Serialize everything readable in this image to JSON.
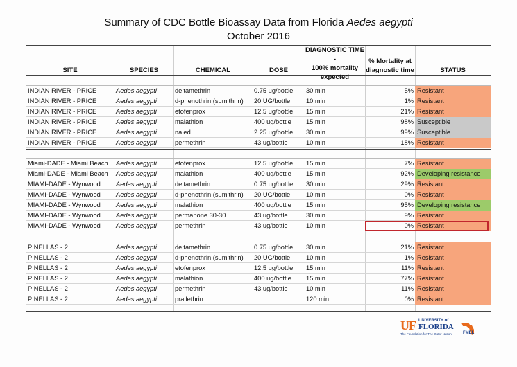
{
  "title": {
    "main": "Summary of CDC Bottle Bioassay Data from Florida",
    "species_italic": "Aedes aegypti",
    "date": "October 2016"
  },
  "headers": {
    "site": "SITE",
    "species": "SPECIES",
    "chemical": "CHEMICAL",
    "dose": "DOSE",
    "diag_1": "DIAGNOSTIC TIME -",
    "diag_2": "100% mortality",
    "diag_3": "expected",
    "mort_1": "% Mortality at",
    "mort_2": "diagnostic time",
    "status": "STATUS"
  },
  "groups": [
    {
      "rows": [
        {
          "site": "INDIAN RIVER - PRICE",
          "species": "Aedes aegypti",
          "chemical": "deltamethrin",
          "dose": "0.75 ug/bottle",
          "time": "30 min",
          "mortality": "5%",
          "status": "Resistant",
          "status_type": "resistant"
        },
        {
          "site": "INDIAN RIVER - PRICE",
          "species": "Aedes aegypti",
          "chemical": "d-phenothrin (sumithrin)",
          "dose": "20 UG/bottle",
          "time": "10 min",
          "mortality": "1%",
          "status": "Resistant",
          "status_type": "resistant"
        },
        {
          "site": "INDIAN RIVER - PRICE",
          "species": "Aedes aegypti",
          "chemical": "etofenprox",
          "dose": "12.5 ug/bottle",
          "time": "15 min",
          "mortality": "21%",
          "status": "Resistant",
          "status_type": "resistant"
        },
        {
          "site": "INDIAN RIVER - PRICE",
          "species": "Aedes aegypti",
          "chemical": "malathion",
          "dose": "400 ug/bottle",
          "time": "15 min",
          "mortality": "98%",
          "status": "Susceptible",
          "status_type": "susceptible"
        },
        {
          "site": "INDIAN RIVER - PRICE",
          "species": "Aedes aegypti",
          "chemical": "naled",
          "dose": "2.25 ug/bottle",
          "time": "30 min",
          "mortality": "99%",
          "status": "Susceptible",
          "status_type": "susceptible"
        },
        {
          "site": "INDIAN RIVER - PRICE",
          "species": "Aedes aegypti",
          "chemical": "permethrin",
          "dose": "43 ug/bottle",
          "time": "10 min",
          "mortality": "18%",
          "status": "Resistant",
          "status_type": "resistant"
        }
      ]
    },
    {
      "rows": [
        {
          "site": "Miami-DADE - Miami Beach",
          "species": "Aedes aegypti",
          "chemical": "etofenprox",
          "dose": "12.5 ug/bottle",
          "time": "15 min",
          "mortality": "7%",
          "status": "Resistant",
          "status_type": "resistant"
        },
        {
          "site": "Miami-DADE - Miami Beach",
          "species": "Aedes aegypti",
          "chemical": "malathion",
          "dose": "400 ug/bottle",
          "time": "15 min",
          "mortality": "92%",
          "status": "Developing resistance",
          "status_type": "developing"
        },
        {
          "site": "MIAMI-DADE - Wynwood",
          "species": "Aedes aegypti",
          "chemical": "deltamethrin",
          "dose": "0.75 ug/bottle",
          "time": "30 min",
          "mortality": "29%",
          "status": "Resistant",
          "status_type": "resistant"
        },
        {
          "site": "MIAMI-DADE - Wynwood",
          "species": "Aedes aegypti",
          "chemical": "d-phenothrin (sumithrin)",
          "dose": "20 UG/bottle",
          "time": "10 min",
          "mortality": "0%",
          "status": "Resistant",
          "status_type": "resistant"
        },
        {
          "site": "MIAMI-DADE - Wynwood",
          "species": "Aedes aegypti",
          "chemical": "malathion",
          "dose": "400 ug/bottle",
          "time": "15 min",
          "mortality": "95%",
          "status": "Developing resistance",
          "status_type": "developing"
        },
        {
          "site": "MIAMI-DADE - Wynwood",
          "species": "Aedes aegypti",
          "chemical": "permanone 30-30",
          "dose": "43 ug/bottle",
          "time": "30 min",
          "mortality": "9%",
          "status": "Resistant",
          "status_type": "resistant"
        },
        {
          "site": "MIAMI-DADE - Wynwood",
          "species": "Aedes aegypti",
          "chemical": "permethrin",
          "dose": "43 ug/bottle",
          "time": "10 min",
          "mortality": "0%",
          "status": "Resistant",
          "status_type": "resistant"
        }
      ]
    },
    {
      "rows": [
        {
          "site": "PINELLAS - 2",
          "species": "Aedes aegypti",
          "chemical": "deltamethrin",
          "dose": "0.75 ug/bottle",
          "time": "30 min",
          "mortality": "21%",
          "status": "Resistant",
          "status_type": "resistant"
        },
        {
          "site": "PINELLAS - 2",
          "species": "Aedes aegypti",
          "chemical": "d-phenothrin (sumithrin)",
          "dose": "20 UG/bottle",
          "time": "10 min",
          "mortality": "1%",
          "status": "Resistant",
          "status_type": "resistant"
        },
        {
          "site": "PINELLAS - 2",
          "species": "Aedes aegypti",
          "chemical": "etofenprox",
          "dose": "12.5 ug/bottle",
          "time": "15 min",
          "mortality": "11%",
          "status": "Resistant",
          "status_type": "resistant"
        },
        {
          "site": "PINELLAS - 2",
          "species": "Aedes aegypti",
          "chemical": "malathion",
          "dose": "400 ug/bottle",
          "time": "15 min",
          "mortality": "77%",
          "status": "Resistant",
          "status_type": "resistant"
        },
        {
          "site": "PINELLAS - 2",
          "species": "Aedes aegypti",
          "chemical": "permethrin",
          "dose": "43 ug/bottle",
          "time": "10 min",
          "mortality": "11%",
          "status": "Resistant",
          "status_type": "resistant"
        },
        {
          "site": "PINELLAS - 2",
          "species": "Aedes aegypti",
          "chemical": "prallethrin",
          "dose": "",
          "time": "120 min",
          "mortality": "0%",
          "status": "Resistant",
          "status_type": "resistant"
        }
      ]
    }
  ],
  "logo": {
    "uf": "UF",
    "university_of": "UNIVERSITY of",
    "florida": "FLORIDA",
    "tagline": "The Foundation for The Gator Nation",
    "fmel": "FMEL"
  },
  "colors": {
    "resistant": "#f7a57c",
    "susceptible": "#c9c9c9",
    "developing": "#9ccb6a",
    "highlight": "#c1272d"
  }
}
